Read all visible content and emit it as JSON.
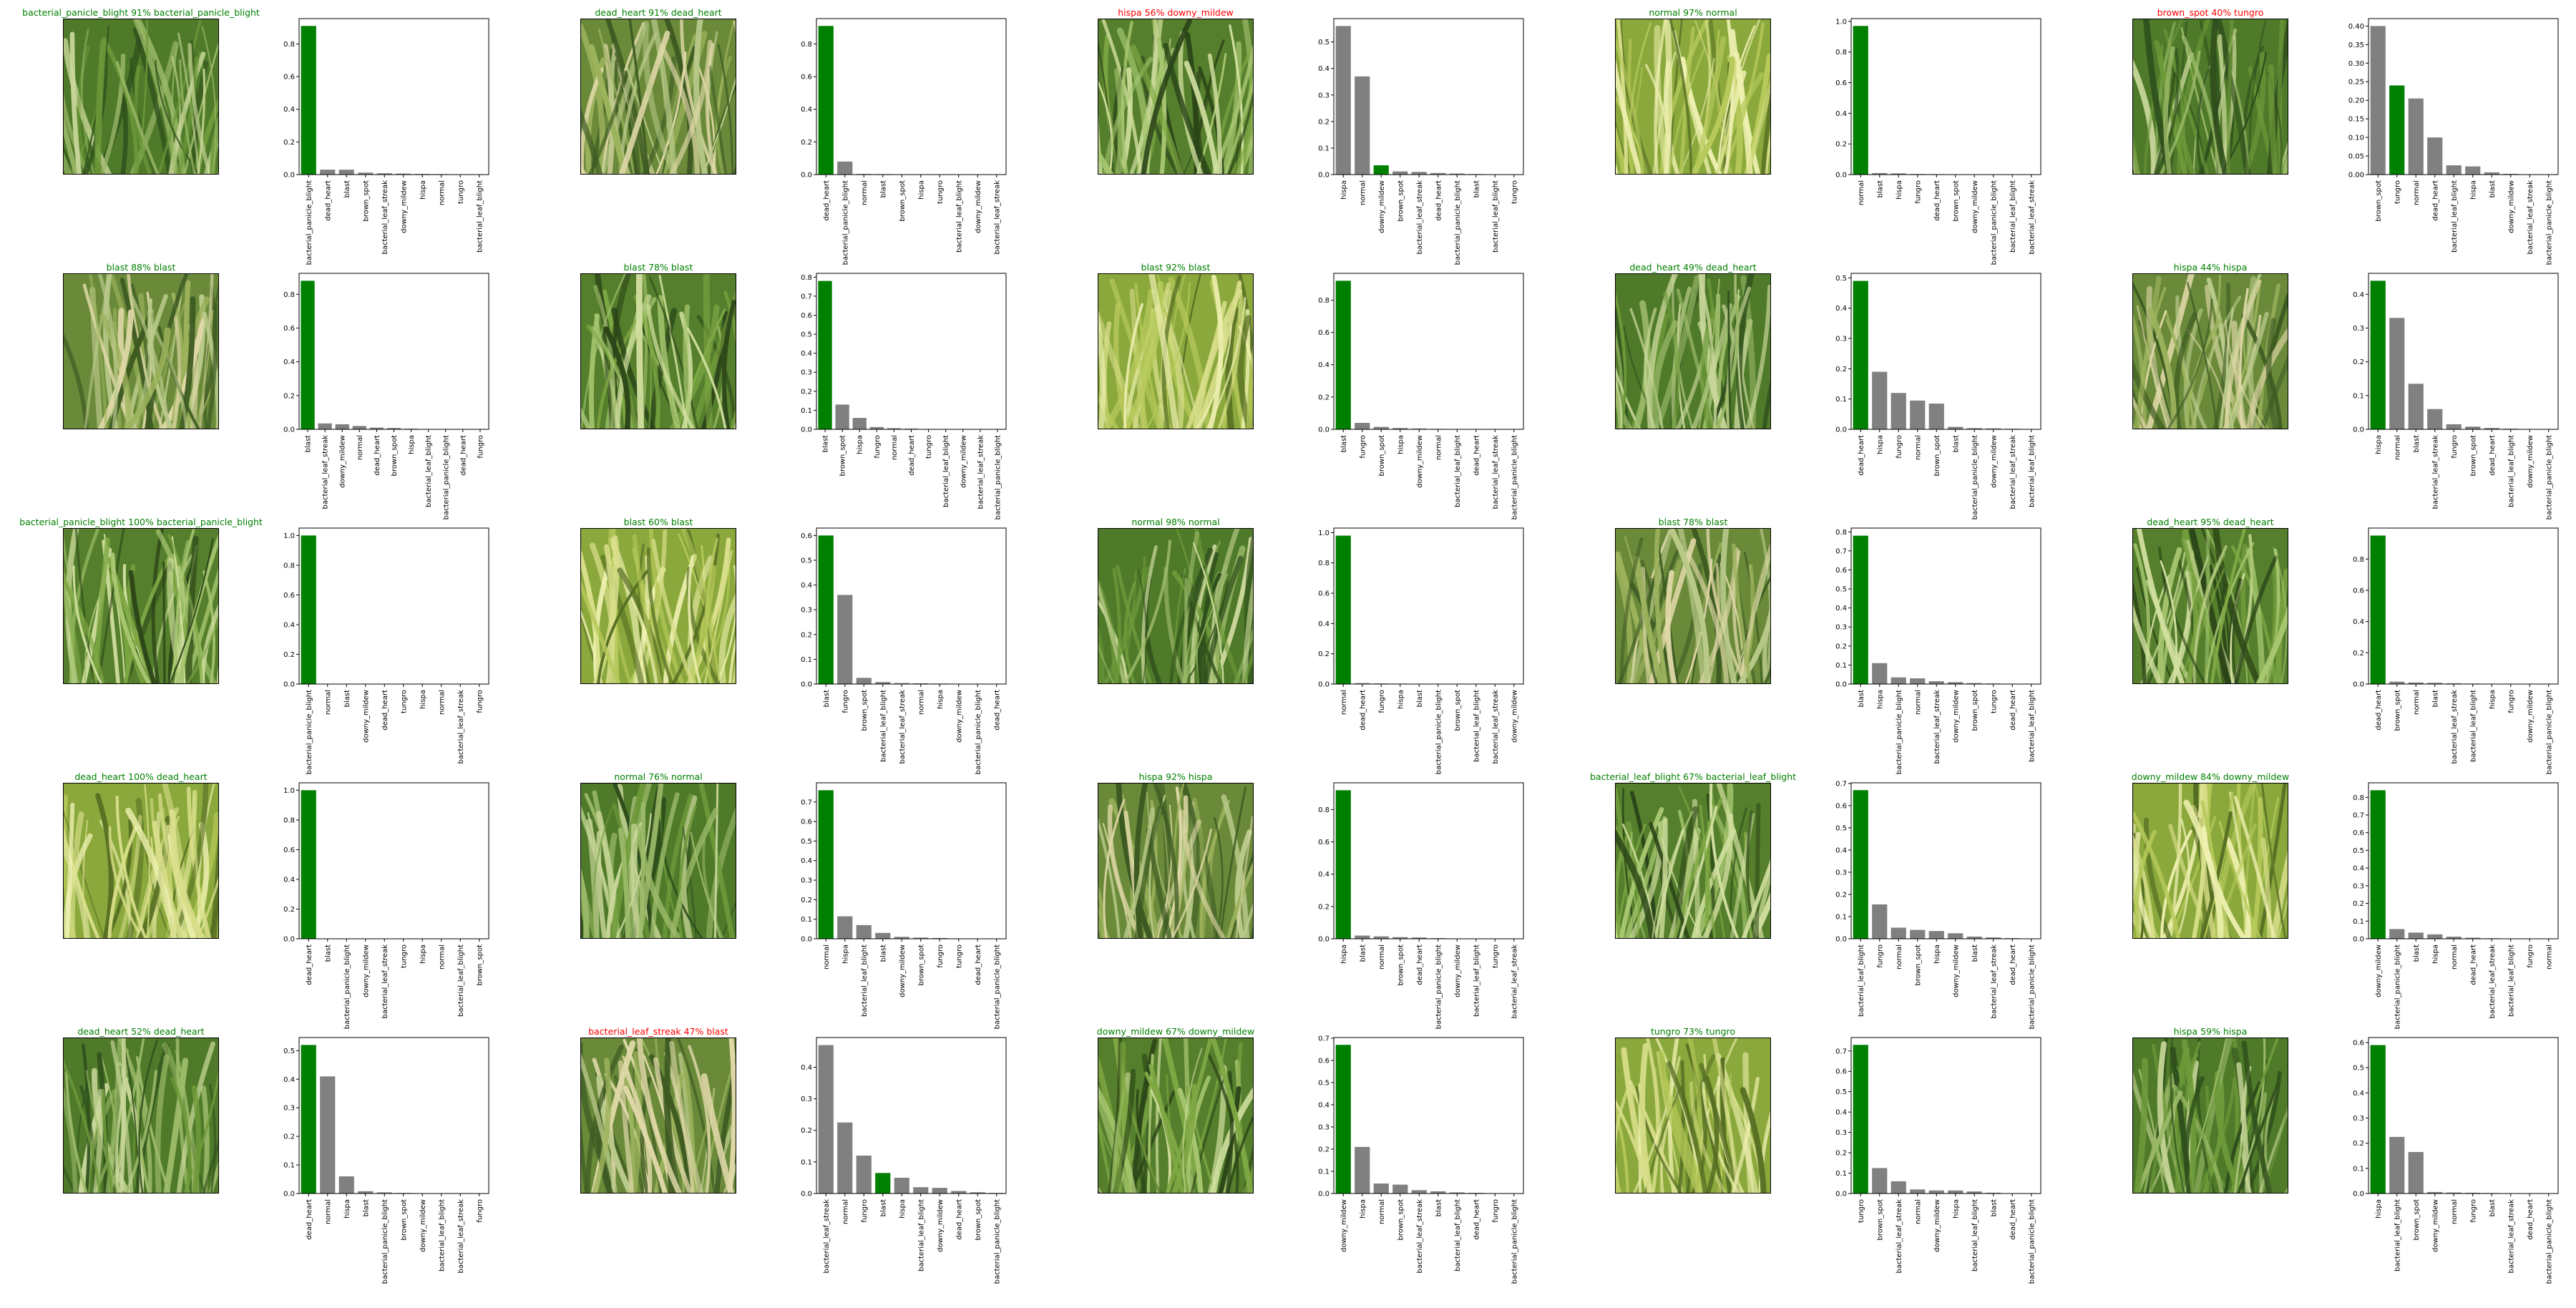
{
  "colors": {
    "correct": "#008000",
    "incorrect": "#ff0000",
    "prediction_bar": "#808080",
    "true_bar": "#008000"
  },
  "chart_data": [
    {
      "type": "bar",
      "title": "bacterial_panicle_blight 91% bacterial_panicle_blight",
      "title_color": "green",
      "categories": [
        "bacterial_panicle_blight",
        "dead_heart",
        "blast",
        "brown_spot",
        "bacterial_leaf_streak",
        "downy_mildew",
        "hispa",
        "normal",
        "tungro",
        "bacterial_leaf_blight"
      ],
      "values": [
        0.91,
        0.03,
        0.03,
        0.012,
        0.008,
        0.006,
        0.004,
        0.003,
        0.002,
        0.001
      ],
      "true_label": "bacterial_panicle_blight",
      "yticks": [
        "0.0",
        "0.2",
        "0.4",
        "0.6",
        "0.8"
      ],
      "ylim": [
        0,
        0.955
      ]
    },
    {
      "type": "bar",
      "title": "dead_heart 91% dead_heart",
      "title_color": "green",
      "categories": [
        "dead_heart",
        "bacterial_panicle_blight",
        "normal",
        "blast",
        "brown_spot",
        "hispa",
        "tungro",
        "bacterial_leaf_blight",
        "downy_mildew",
        "bacterial_leaf_streak"
      ],
      "values": [
        0.91,
        0.08,
        0.004,
        0.003,
        0.002,
        0.001,
        0.001,
        0.0,
        0.0,
        0.0
      ],
      "true_label": "dead_heart",
      "yticks": [
        "0.0",
        "0.2",
        "0.4",
        "0.6",
        "0.8"
      ],
      "ylim": [
        0,
        0.955
      ]
    },
    {
      "type": "bar",
      "title": "hispa 56% downy_mildew",
      "title_color": "red",
      "categories": [
        "hispa",
        "normal",
        "downy_mildew",
        "brown_spot",
        "bacterial_leaf_streak",
        "dead_heart",
        "bacterial_panicle_blight",
        "blast",
        "bacterial_leaf_blight",
        "tungro"
      ],
      "values": [
        0.56,
        0.37,
        0.035,
        0.012,
        0.01,
        0.006,
        0.004,
        0.002,
        0.001,
        0.0
      ],
      "true_label": "downy_mildew",
      "yticks": [
        "0.0",
        "0.1",
        "0.2",
        "0.3",
        "0.4",
        "0.5"
      ],
      "ylim": [
        0,
        0.588
      ]
    },
    {
      "type": "bar",
      "title": "normal 97% normal",
      "title_color": "green",
      "categories": [
        "normal",
        "blast",
        "hispa",
        "fungro",
        "dead_heart",
        "brown_spot",
        "downy_mildew",
        "bacterial_panicle_blight",
        "bacterial_leaf_blight",
        "bacterial_leaf_streak"
      ],
      "values": [
        0.97,
        0.01,
        0.008,
        0.004,
        0.003,
        0.002,
        0.001,
        0.001,
        0.0,
        0.0
      ],
      "true_label": "normal",
      "yticks": [
        "0.0",
        "0.2",
        "0.4",
        "0.6",
        "0.8",
        "1.0"
      ],
      "ylim": [
        0,
        1.018
      ]
    },
    {
      "type": "bar",
      "title": "brown_spot 40% tungro",
      "title_color": "red",
      "categories": [
        "brown_spot",
        "tungro",
        "normal",
        "dead_heart",
        "bacterial_leaf_blight",
        "hispa",
        "blast",
        "downy_mildew",
        "bacterial_leaf_streak",
        "bacterial_panicle_blight"
      ],
      "values": [
        0.4,
        0.24,
        0.205,
        0.1,
        0.025,
        0.022,
        0.006,
        0.002,
        0.001,
        0.0
      ],
      "true_label": "tungro",
      "yticks": [
        "0.00",
        "0.05",
        "0.10",
        "0.15",
        "0.20",
        "0.25",
        "0.30",
        "0.35",
        "0.40"
      ],
      "ylim": [
        0,
        0.42
      ]
    },
    {
      "type": "bar",
      "title": "blast 88% blast",
      "title_color": "green",
      "categories": [
        "blast",
        "bacterial_leaf_streak",
        "downy_mildew",
        "normal",
        "dead_heart",
        "brown_spot",
        "hispa",
        "bacterial_leaf_blight",
        "bacterial_panicle_blight",
        "dead_heart",
        "fungro"
      ],
      "values": [
        0.88,
        0.035,
        0.03,
        0.02,
        0.01,
        0.008,
        0.004,
        0.002,
        0.001,
        0.0,
        0.0
      ],
      "true_label": "blast",
      "yticks": [
        "0.0",
        "0.2",
        "0.4",
        "0.6",
        "0.8"
      ],
      "ylim": [
        0,
        0.924
      ]
    },
    {
      "type": "bar",
      "title": "blast 78% blast",
      "title_color": "green",
      "categories": [
        "blast",
        "brown_spot",
        "hispa",
        "fungro",
        "normal",
        "dead_heart",
        "tungro",
        "bacterial_leaf_blight",
        "downy_mildew",
        "bacterial_leaf_streak",
        "bacterial_panicle_blight"
      ],
      "values": [
        0.78,
        0.13,
        0.06,
        0.012,
        0.006,
        0.004,
        0.002,
        0.001,
        0.0,
        0.0,
        0.0
      ],
      "true_label": "blast",
      "yticks": [
        "0.0",
        "0.1",
        "0.2",
        "0.3",
        "0.4",
        "0.5",
        "0.6",
        "0.7",
        "0.8"
      ],
      "ylim": [
        0,
        0.82
      ]
    },
    {
      "type": "bar",
      "title": "blast 92% blast",
      "title_color": "green",
      "categories": [
        "blast",
        "fungro",
        "brown_spot",
        "hispa",
        "downy_mildew",
        "normal",
        "bacterial_leaf_blight",
        "dead_heart",
        "bacterial_leaf_streak",
        "bacterial_panicle_blight"
      ],
      "values": [
        0.92,
        0.04,
        0.015,
        0.008,
        0.005,
        0.003,
        0.002,
        0.001,
        0.0,
        0.0
      ],
      "true_label": "blast",
      "yticks": [
        "0.0",
        "0.2",
        "0.4",
        "0.6",
        "0.8"
      ],
      "ylim": [
        0,
        0.966
      ]
    },
    {
      "type": "bar",
      "title": "dead_heart 49% dead_heart",
      "title_color": "green",
      "categories": [
        "dead_heart",
        "hispa",
        "fungro",
        "normal",
        "brown_spot",
        "blast",
        "bacterial_panicle_blight",
        "downy_mildew",
        "bacterial_leaf_streak",
        "bacterial_leaf_blight"
      ],
      "values": [
        0.49,
        0.19,
        0.12,
        0.095,
        0.085,
        0.008,
        0.004,
        0.003,
        0.002,
        0.001
      ],
      "true_label": "dead_heart",
      "yticks": [
        "0.0",
        "0.1",
        "0.2",
        "0.3",
        "0.4",
        "0.5"
      ],
      "ylim": [
        0,
        0.515
      ]
    },
    {
      "type": "bar",
      "title": "hispa 44% hispa",
      "title_color": "green",
      "categories": [
        "hispa",
        "normal",
        "blast",
        "bacterial_leaf_streak",
        "fungro",
        "brown_spot",
        "dead_heart",
        "bacterial_leaf_blight",
        "downy_mildew",
        "bacterial_panicle_blight"
      ],
      "values": [
        0.44,
        0.33,
        0.135,
        0.06,
        0.015,
        0.008,
        0.004,
        0.002,
        0.001,
        0.0
      ],
      "true_label": "hispa",
      "yticks": [
        "0.0",
        "0.1",
        "0.2",
        "0.3",
        "0.4"
      ],
      "ylim": [
        0,
        0.462
      ]
    },
    {
      "type": "bar",
      "title": "bacterial_panicle_blight 100% bacterial_panicle_blight",
      "title_color": "green",
      "categories": [
        "bacterial_panicle_blight",
        "normal",
        "blast",
        "downy_mildew",
        "dead_heart",
        "tungro",
        "hispa",
        "normal",
        "bacterial_leaf_streak",
        "fungro"
      ],
      "values": [
        1.0,
        0.002,
        0.001,
        0.0,
        0.0,
        0.0,
        0.0,
        0.0,
        0.0,
        0.0
      ],
      "true_label": "bacterial_panicle_blight",
      "yticks": [
        "0.0",
        "0.2",
        "0.4",
        "0.6",
        "0.8",
        "1.0"
      ],
      "ylim": [
        0,
        1.05
      ]
    },
    {
      "type": "bar",
      "title": "blast 60% blast",
      "title_color": "green",
      "categories": [
        "blast",
        "fungro",
        "brown_spot",
        "bacterial_leaf_blight",
        "bacterial_leaf_streak",
        "normal",
        "hispa",
        "downy_mildew",
        "bacterial_panicle_blight",
        "dead_heart"
      ],
      "values": [
        0.6,
        0.36,
        0.025,
        0.008,
        0.004,
        0.003,
        0.002,
        0.001,
        0.0,
        0.0
      ],
      "true_label": "blast",
      "yticks": [
        "0.0",
        "0.1",
        "0.2",
        "0.3",
        "0.4",
        "0.5",
        "0.6"
      ],
      "ylim": [
        0,
        0.63
      ]
    },
    {
      "type": "bar",
      "title": "normal 98% normal",
      "title_color": "green",
      "categories": [
        "normal",
        "dead_heart",
        "fungro",
        "hispa",
        "blast",
        "bacterial_panicle_blight",
        "brown_spot",
        "bacterial_leaf_blight",
        "bacterial_leaf_streak",
        "downy_mildew"
      ],
      "values": [
        0.98,
        0.006,
        0.004,
        0.003,
        0.002,
        0.001,
        0.0,
        0.0,
        0.0,
        0.0
      ],
      "true_label": "normal",
      "yticks": [
        "0.0",
        "0.2",
        "0.4",
        "0.6",
        "0.8",
        "1.0"
      ],
      "ylim": [
        0,
        1.03
      ]
    },
    {
      "type": "bar",
      "title": "blast 78% blast",
      "title_color": "green",
      "categories": [
        "blast",
        "hispa",
        "bacterial_panicle_blight",
        "normal",
        "bacterial_leaf_streak",
        "downy_mildew",
        "brown_spot",
        "tungro",
        "dead_heart",
        "bacterial_leaf_blight"
      ],
      "values": [
        0.78,
        0.11,
        0.035,
        0.03,
        0.015,
        0.01,
        0.005,
        0.003,
        0.001,
        0.0
      ],
      "true_label": "blast",
      "yticks": [
        "0.0",
        "0.1",
        "0.2",
        "0.3",
        "0.4",
        "0.5",
        "0.6",
        "0.7",
        "0.8"
      ],
      "ylim": [
        0,
        0.82
      ]
    },
    {
      "type": "bar",
      "title": "dead_heart 95% dead_heart",
      "title_color": "green",
      "categories": [
        "dead_heart",
        "brown_spot",
        "normal",
        "blast",
        "bacterial_leaf_streak",
        "bacterial_leaf_blight",
        "hispa",
        "fungro",
        "downy_mildew",
        "bacterial_panicle_blight"
      ],
      "values": [
        0.95,
        0.015,
        0.01,
        0.008,
        0.005,
        0.003,
        0.002,
        0.001,
        0.0,
        0.0
      ],
      "true_label": "dead_heart",
      "yticks": [
        "0.0",
        "0.2",
        "0.4",
        "0.6",
        "0.8"
      ],
      "ylim": [
        0,
        0.998
      ]
    },
    {
      "type": "bar",
      "title": "dead_heart 100% dead_heart",
      "title_color": "green",
      "categories": [
        "dead_heart",
        "blast",
        "bacterial_panicle_blight",
        "downy_mildew",
        "bacterial_leaf_streak",
        "tungro",
        "hispa",
        "normal",
        "bacterial_leaf_blight",
        "brown_spot"
      ],
      "values": [
        1.0,
        0.002,
        0.001,
        0.0,
        0.0,
        0.0,
        0.0,
        0.0,
        0.0,
        0.0
      ],
      "true_label": "dead_heart",
      "yticks": [
        "0.0",
        "0.2",
        "0.4",
        "0.6",
        "0.8",
        "1.0"
      ],
      "ylim": [
        0,
        1.05
      ]
    },
    {
      "type": "bar",
      "title": "normal 76% normal",
      "title_color": "green",
      "categories": [
        "normal",
        "hispa",
        "bacterial_leaf_blight",
        "blast",
        "downy_mildew",
        "brown_spot",
        "fungro",
        "tungro",
        "dead_heart",
        "bacterial_panicle_blight"
      ],
      "values": [
        0.76,
        0.115,
        0.07,
        0.03,
        0.01,
        0.006,
        0.004,
        0.002,
        0.001,
        0.0
      ],
      "true_label": "normal",
      "yticks": [
        "0.0",
        "0.1",
        "0.2",
        "0.3",
        "0.4",
        "0.5",
        "0.6",
        "0.7"
      ],
      "ylim": [
        0,
        0.798
      ]
    },
    {
      "type": "bar",
      "title": "hispa 92% hispa",
      "title_color": "green",
      "categories": [
        "hispa",
        "blast",
        "normal",
        "brown_spot",
        "dead_heart",
        "bacterial_panicle_blight",
        "downy_mildew",
        "bacterial_leaf_blight",
        "tungro",
        "bacterial_leaf_streak"
      ],
      "values": [
        0.92,
        0.02,
        0.015,
        0.01,
        0.008,
        0.004,
        0.002,
        0.001,
        0.0,
        0.0
      ],
      "true_label": "hispa",
      "yticks": [
        "0.0",
        "0.2",
        "0.4",
        "0.6",
        "0.8"
      ],
      "ylim": [
        0,
        0.966
      ]
    },
    {
      "type": "bar",
      "title": "bacterial_leaf_blight 67% bacterial_leaf_blight",
      "title_color": "green",
      "categories": [
        "bacterial_leaf_blight",
        "fungro",
        "normal",
        "brown_spot",
        "hispa",
        "downy_mildew",
        "blast",
        "bacterial_leaf_streak",
        "dead_heart",
        "bacterial_panicle_blight"
      ],
      "values": [
        0.67,
        0.155,
        0.05,
        0.04,
        0.035,
        0.025,
        0.01,
        0.006,
        0.003,
        0.001
      ],
      "true_label": "bacterial_leaf_blight",
      "yticks": [
        "0.0",
        "0.1",
        "0.2",
        "0.3",
        "0.4",
        "0.5",
        "0.6",
        "0.7"
      ],
      "ylim": [
        0,
        0.703
      ]
    },
    {
      "type": "bar",
      "title": "downy_mildew 84% downy_mildew",
      "title_color": "green",
      "categories": [
        "downy_mildew",
        "bacterial_panicle_blight",
        "blast",
        "hispa",
        "normal",
        "dead_heart",
        "bacterial_leaf_streak",
        "bacterial_leaf_blight",
        "fungro",
        "normal"
      ],
      "values": [
        0.84,
        0.055,
        0.035,
        0.025,
        0.012,
        0.006,
        0.003,
        0.002,
        0.001,
        0.0
      ],
      "true_label": "downy_mildew",
      "yticks": [
        "0.0",
        "0.1",
        "0.2",
        "0.3",
        "0.4",
        "0.5",
        "0.6",
        "0.7",
        "0.8"
      ],
      "ylim": [
        0,
        0.882
      ]
    },
    {
      "type": "bar",
      "title": "dead_heart 52% dead_heart",
      "title_color": "green",
      "categories": [
        "dead_heart",
        "normal",
        "hispa",
        "blast",
        "bacterial_panicle_blight",
        "brown_spot",
        "downy_mildew",
        "bacterial_leaf_blight",
        "bacterial_leaf_streak",
        "fungro"
      ],
      "values": [
        0.52,
        0.41,
        0.06,
        0.008,
        0.004,
        0.002,
        0.001,
        0.0,
        0.0,
        0.0
      ],
      "true_label": "dead_heart",
      "yticks": [
        "0.0",
        "0.1",
        "0.2",
        "0.3",
        "0.4",
        "0.5"
      ],
      "ylim": [
        0,
        0.546
      ]
    },
    {
      "type": "bar",
      "title": "bacterial_leaf_streak 47% blast",
      "title_color": "red",
      "categories": [
        "bacterial_leaf_streak",
        "normal",
        "fungro",
        "blast",
        "hispa",
        "bacterial_leaf_blight",
        "downy_mildew",
        "dead_heart",
        "brown_spot",
        "bacterial_panicle_blight"
      ],
      "values": [
        0.47,
        0.225,
        0.12,
        0.065,
        0.05,
        0.02,
        0.018,
        0.008,
        0.004,
        0.002
      ],
      "true_label": "blast",
      "yticks": [
        "0.0",
        "0.1",
        "0.2",
        "0.3",
        "0.4"
      ],
      "ylim": [
        0,
        0.494
      ]
    },
    {
      "type": "bar",
      "title": "downy_mildew 67% downy_mildew",
      "title_color": "green",
      "categories": [
        "downy_mildew",
        "hispa",
        "normal",
        "brown_spot",
        "bacterial_leaf_streak",
        "blast",
        "bacterial_leaf_blight",
        "dead_heart",
        "fungro",
        "bacterial_panicle_blight"
      ],
      "values": [
        0.67,
        0.21,
        0.045,
        0.04,
        0.015,
        0.01,
        0.005,
        0.003,
        0.001,
        0.0
      ],
      "true_label": "downy_mildew",
      "yticks": [
        "0.0",
        "0.1",
        "0.2",
        "0.3",
        "0.4",
        "0.5",
        "0.6",
        "0.7"
      ],
      "ylim": [
        0,
        0.703
      ]
    },
    {
      "type": "bar",
      "title": "tungro 73% tungro",
      "title_color": "green",
      "categories": [
        "tungro",
        "brown_spot",
        "bacterial_leaf_streak",
        "normal",
        "downy_mildew",
        "hispa",
        "bacterial_leaf_blight",
        "blast",
        "dead_heart",
        "bacterial_panicle_blight"
      ],
      "values": [
        0.73,
        0.125,
        0.06,
        0.02,
        0.015,
        0.015,
        0.01,
        0.004,
        0.001,
        0.0
      ],
      "true_label": "tungro",
      "yticks": [
        "0.0",
        "0.1",
        "0.2",
        "0.3",
        "0.4",
        "0.5",
        "0.6",
        "0.7"
      ],
      "ylim": [
        0,
        0.766
      ]
    },
    {
      "type": "bar",
      "title": "hispa 59% hispa",
      "title_color": "green",
      "categories": [
        "hispa",
        "bacterial_leaf_blight",
        "brown_spot",
        "downy_mildew",
        "normal",
        "fungro",
        "blast",
        "bacterial_leaf_streak",
        "dead_heart",
        "bacterial_panicle_blight"
      ],
      "values": [
        0.59,
        0.225,
        0.165,
        0.006,
        0.004,
        0.003,
        0.002,
        0.001,
        0.0,
        0.0
      ],
      "true_label": "hispa",
      "yticks": [
        "0.0",
        "0.1",
        "0.2",
        "0.3",
        "0.4",
        "0.5",
        "0.6"
      ],
      "ylim": [
        0,
        0.62
      ]
    }
  ]
}
